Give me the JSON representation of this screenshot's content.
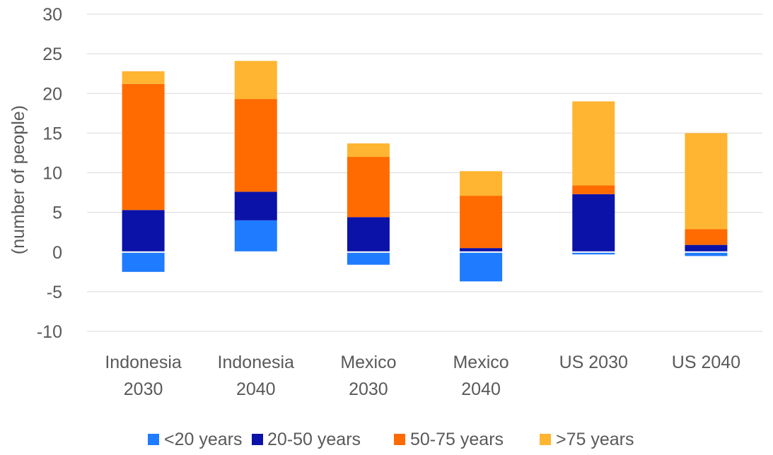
{
  "chart_data": {
    "type": "bar",
    "stacked": true,
    "title": "",
    "xlabel": "",
    "ylabel": "(number of people)",
    "ylim": [
      -10,
      30
    ],
    "yticks": [
      -10,
      -5,
      0,
      5,
      10,
      15,
      20,
      25,
      30
    ],
    "ytick_labels": [
      "-10",
      "-5",
      "0",
      "5",
      "10",
      "15",
      "20",
      "25",
      "30"
    ],
    "grid": "horizontal",
    "legend_position": "bottom",
    "categories": [
      [
        "Indonesia",
        "2030"
      ],
      [
        "Indonesia",
        "2040"
      ],
      [
        "Mexico",
        "2030"
      ],
      [
        "Mexico",
        "2040"
      ],
      [
        "US 2030"
      ],
      [
        "US 2040"
      ]
    ],
    "series": [
      {
        "name": "<20 years",
        "color": "#1F7BFF",
        "values": [
          -2.5,
          4.0,
          -1.6,
          -3.7,
          -0.3,
          -0.5
        ]
      },
      {
        "name": "20-50 years",
        "color": "#0B12A8",
        "values": [
          5.3,
          3.6,
          4.4,
          0.5,
          7.3,
          0.9
        ]
      },
      {
        "name": "50-75 years",
        "color": "#FF6B00",
        "values": [
          15.9,
          11.7,
          7.6,
          6.6,
          1.1,
          2.0
        ]
      },
      {
        "name": ">75 years",
        "color": "#FFB531",
        "values": [
          1.6,
          4.8,
          1.7,
          3.1,
          10.6,
          12.1
        ]
      }
    ]
  }
}
